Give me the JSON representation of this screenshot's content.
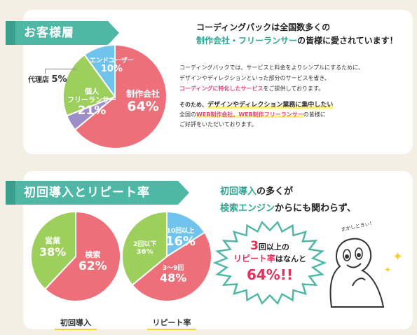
{
  "colors": {
    "pink": "#ec6f79",
    "green": "#9ccf5b",
    "blue": "#6fc3ec",
    "purple": "#9b8ec9",
    "teal": "#4fb8a5",
    "text_teal": "#2fa58f",
    "text_pink": "#e0497e"
  },
  "section1": {
    "title": "お客様層",
    "pie": {
      "type": "pie",
      "slices": [
        {
          "label": "制作会社",
          "value": 64,
          "pct": "64%"
        },
        {
          "label": "代理店",
          "value": 5,
          "pct": "5%"
        },
        {
          "label": "個人フリーランサー",
          "value": 21,
          "pct": "21%",
          "line1": "個人",
          "line2": "フリーランサー"
        },
        {
          "label": "エンドユーザー",
          "value": 10,
          "pct": "10%"
        }
      ]
    },
    "headline": {
      "line1": "コーディングパックは全国数多くの",
      "line2_teal": "制作会社・フリーランサー",
      "line2_rest": "の皆様に愛されています！"
    },
    "para1": {
      "line1": "コーディングパックでは、サービスと料金をよりシンプルにするために、",
      "line2": "デザインやディレクションといった部分のサービスを省き、",
      "line3_pink": "コーディングに特化したサービス",
      "line3_rest": "をご提供しております。"
    },
    "para2": {
      "line1_a": "そのため、",
      "line1_b": "デザインやディレクション業務に集中したい",
      "line2_a": "全国の",
      "line2_pink": "WEB制作会社、WEB制作フリーランサー",
      "line2_b": "の皆様に",
      "line3": "ご好評をいただいております。"
    }
  },
  "section2": {
    "title": "初回導入とリピート率",
    "pie1": {
      "caption": "初回導入",
      "slices": [
        {
          "label": "検索",
          "value": 62,
          "pct": "62%"
        },
        {
          "label": "営業",
          "value": 38,
          "pct": "38%"
        }
      ]
    },
    "pie2": {
      "caption": "リピート率",
      "slices": [
        {
          "label": "10回以上",
          "value": 16,
          "pct": "16%"
        },
        {
          "label": "3～9回",
          "value": 48,
          "pct": "48%"
        },
        {
          "label": "2回以下",
          "value": 36,
          "pct": "36%"
        }
      ]
    },
    "text": {
      "line1_teal": "初回導入",
      "line1_rest": "の多くが",
      "line2_teal": "検索エンジン",
      "line2_rest": "からにも関わらず、"
    },
    "burst": {
      "num": "3",
      "l1_rest": "回以上の",
      "l2_red": "リピート率",
      "l2_rest": "はなんと",
      "big": "64%!!"
    },
    "character": {
      "speech": "まかしときぃ！"
    }
  }
}
